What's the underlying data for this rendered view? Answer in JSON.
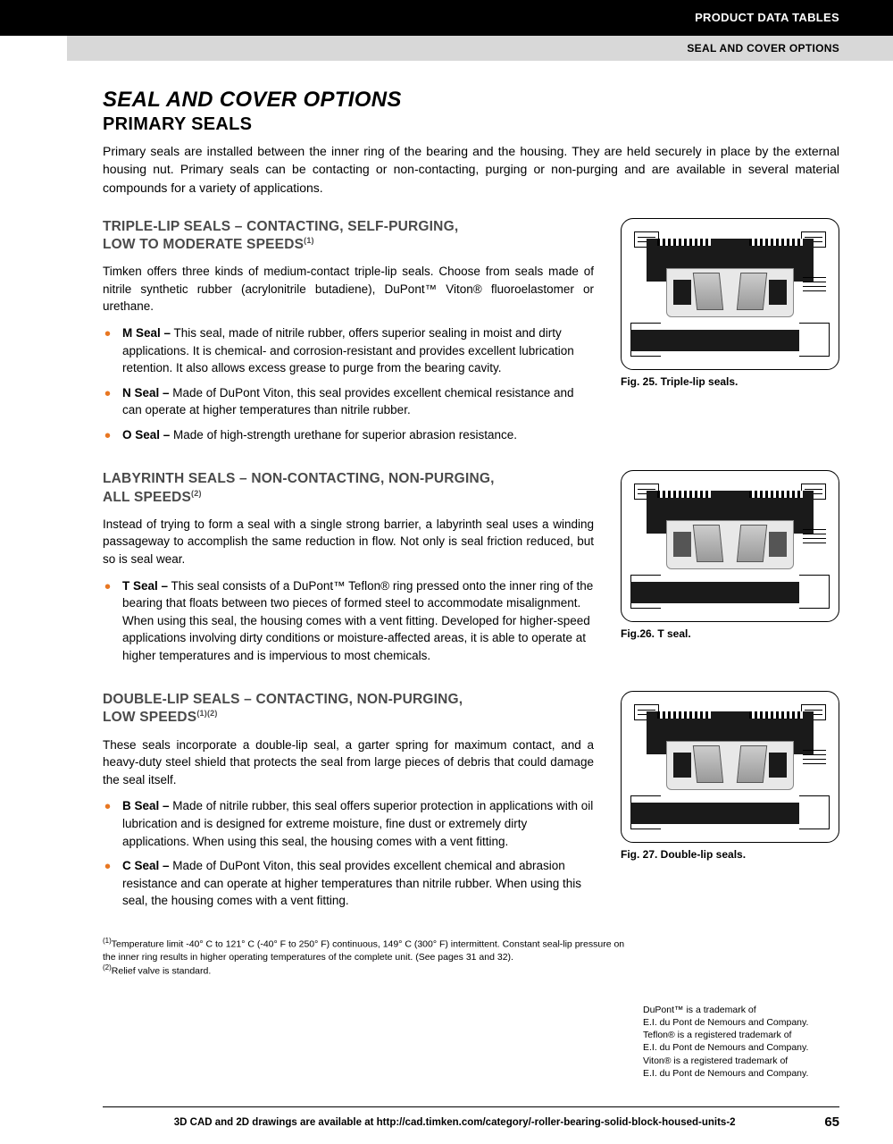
{
  "header": {
    "black_bar": "PRODUCT DATA TABLES",
    "grey_bar": "SEAL AND COVER OPTIONS"
  },
  "titles": {
    "main": "SEAL AND COVER OPTIONS",
    "sub": "PRIMARY SEALS"
  },
  "intro": "Primary seals are installed between the inner ring of the bearing and the housing. They are held securely in place by the external housing nut. Primary seals can be contacting or non-contacting, purging or non-purging and are available in several material compounds for a variety of applications.",
  "sections": {
    "triple": {
      "heading_l1": "TRIPLE-LIP SEALS – CONTACTING, SELF-PURGING,",
      "heading_l2": "LOW TO MODERATE SPEEDS",
      "heading_sup": "(1)",
      "para": "Timken offers three kinds of medium-contact triple-lip seals. Choose from seals made of nitrile synthetic rubber (acrylonitrile butadiene), DuPont™ Viton® fluoroelastomer or urethane.",
      "bullets": [
        {
          "label": "M Seal –",
          "text": " This seal, made of nitrile rubber, offers superior sealing in moist and dirty applications. It is chemical- and corrosion-resistant and provides excellent lubrication retention. It also allows excess grease to purge from the bearing cavity."
        },
        {
          "label": "N Seal –",
          "text": " Made of DuPont Viton, this seal provides excellent chemical resistance and can operate at higher temperatures than nitrile rubber."
        },
        {
          "label": "O Seal –",
          "text": " Made of high-strength urethane for superior abrasion resistance."
        }
      ],
      "caption": "Fig. 25. Triple-lip seals."
    },
    "labyrinth": {
      "heading_l1": "LABYRINTH SEALS – NON-CONTACTING, NON-PURGING,",
      "heading_l2": "ALL SPEEDS",
      "heading_sup": "(2)",
      "para": "Instead of trying to form a seal with a single strong barrier, a labyrinth seal uses a winding passageway to accomplish the same reduction in flow. Not only is seal friction reduced, but so is seal wear.",
      "bullets": [
        {
          "label": "T Seal –",
          "text": " This seal consists of a DuPont™ Teflon® ring pressed onto the inner ring of the bearing that floats between two pieces of formed steel to accommodate misalignment. When using this seal, the housing comes with a vent fitting. Developed for higher-speed applications involving dirty conditions or moisture-affected areas, it is able to operate at higher temperatures and is impervious to most chemicals."
        }
      ],
      "caption": "Fig.26. T seal."
    },
    "double": {
      "heading_l1": "DOUBLE-LIP SEALS – CONTACTING, NON-PURGING,",
      "heading_l2": "LOW SPEEDS",
      "heading_sup": "(1)(2)",
      "para": "These seals incorporate a double-lip seal, a garter spring for maximum contact, and a heavy-duty steel shield that protects the seal from large pieces of debris that could damage the seal itself.",
      "bullets": [
        {
          "label": "B Seal –",
          "text": " Made of nitrile rubber, this seal offers superior protection in applications with oil lubrication and is designed for extreme moisture, fine dust or extremely dirty applications. When using this seal, the housing comes with a vent fitting."
        },
        {
          "label": "C Seal –",
          "text": " Made of DuPont Viton, this seal provides excellent chemical and abrasion resistance and can operate at higher temperatures than nitrile rubber. When using this seal, the housing comes with a vent fitting."
        }
      ],
      "caption": "Fig. 27. Double-lip seals."
    }
  },
  "footnotes": {
    "n1_sup": "(1)",
    "n1": "Temperature limit -40° C to 121° C (-40° F to 250° F) continuous, 149° C (300° F) intermittent. Constant seal-lip pressure on the inner ring results in higher operating temperatures of the complete unit. (See pages 31 and 32).",
    "n2_sup": "(2)",
    "n2": "Relief valve is standard."
  },
  "trademark": "DuPont™ is a trademark of\nE.I. du Pont de Nemours and Company.\nTeflon® is a registered trademark of\nE.I. du Pont de Nemours and Company.\nViton® is a registered trademark of\nE.I. du Pont de Nemours and Company.",
  "footer": {
    "text": "3D CAD and 2D drawings are available at http://cad.timken.com/category/-roller-bearing-solid-block-housed-units-2",
    "page": "65"
  },
  "colors": {
    "bullet": "#e87722",
    "heading_grey": "#4a4a4a",
    "black": "#000000",
    "grey_bar": "#d8d8d8"
  }
}
